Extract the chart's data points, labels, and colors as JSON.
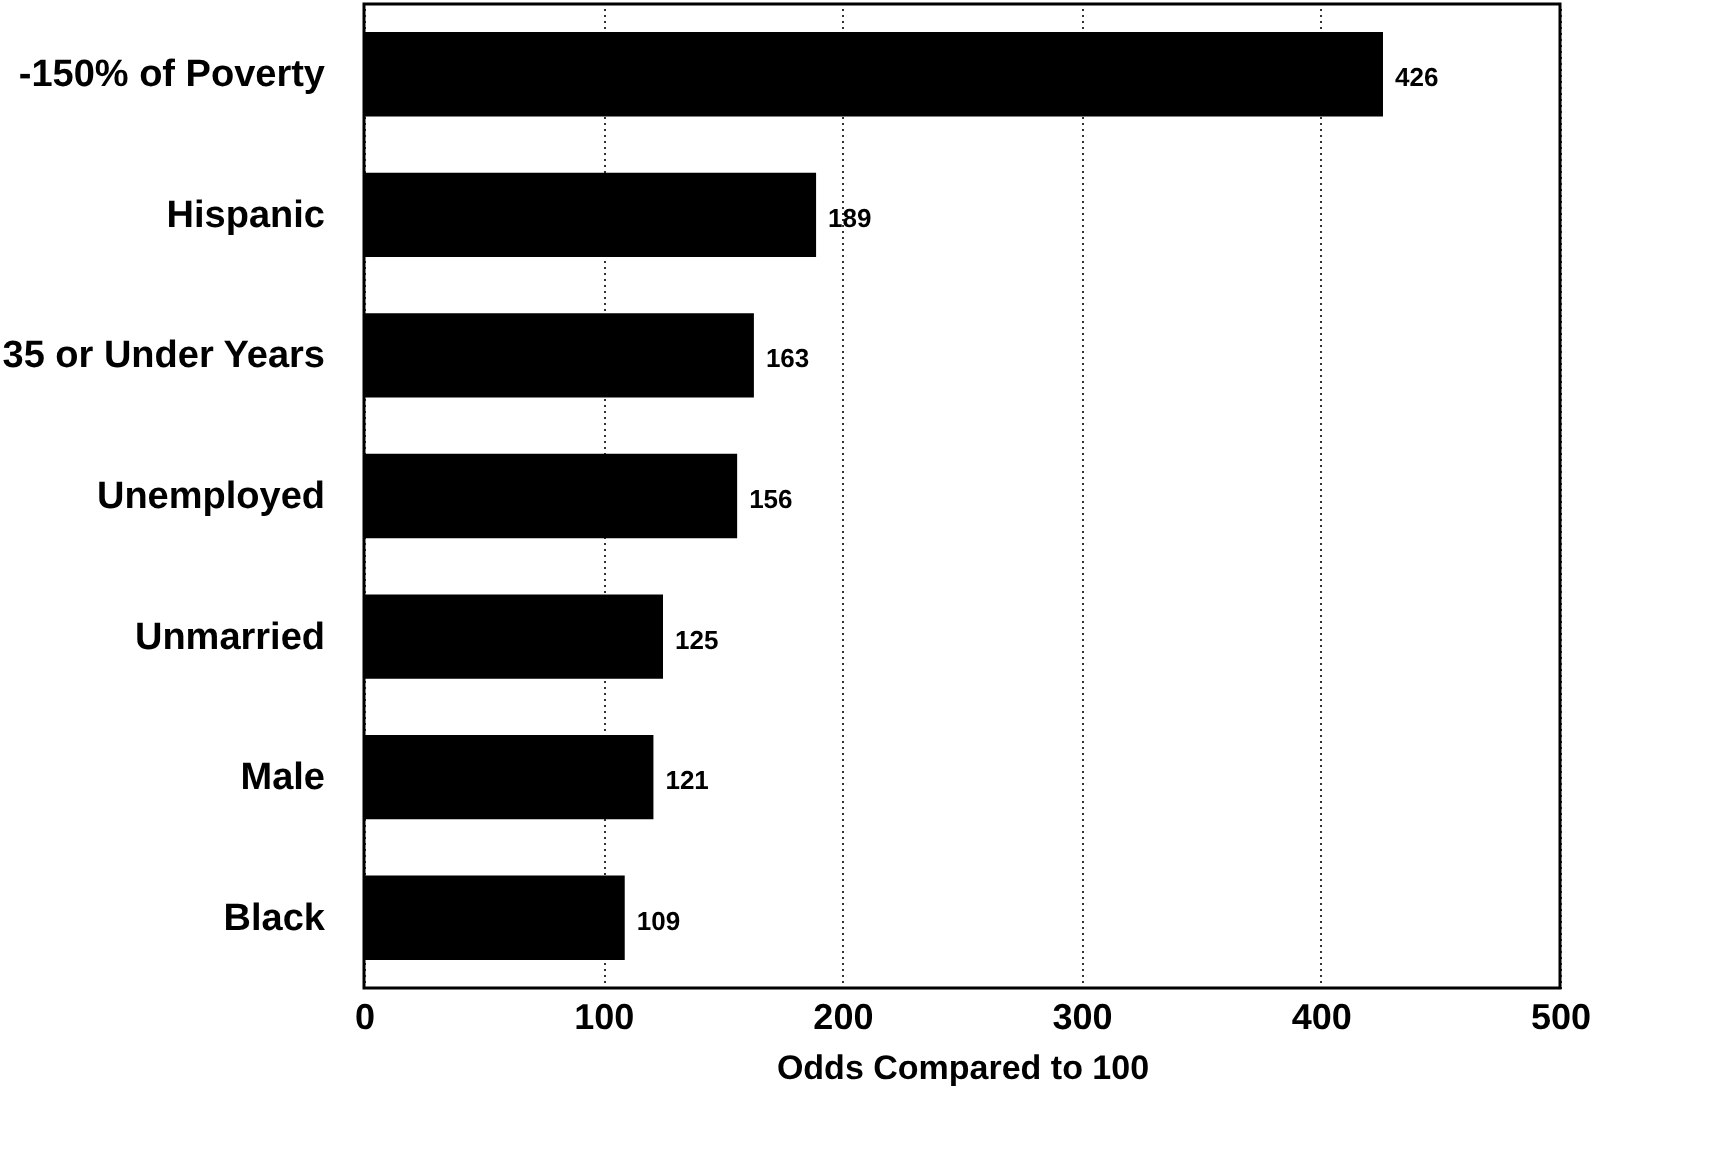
{
  "chart_data": {
    "type": "bar",
    "orientation": "horizontal",
    "xlabel": "Odds Compared to 100",
    "categories": [
      "-150% of Poverty",
      "Hispanic",
      "35 or Under Years",
      "Unemployed",
      "Unmarried",
      "Male",
      "Black"
    ],
    "values": [
      426,
      189,
      163,
      156,
      125,
      121,
      109
    ],
    "color": "#000000",
    "xlim": [
      0,
      500
    ],
    "xticks": [
      0,
      100,
      200,
      300,
      400,
      500
    ],
    "grid": "x",
    "data_labels": true
  }
}
